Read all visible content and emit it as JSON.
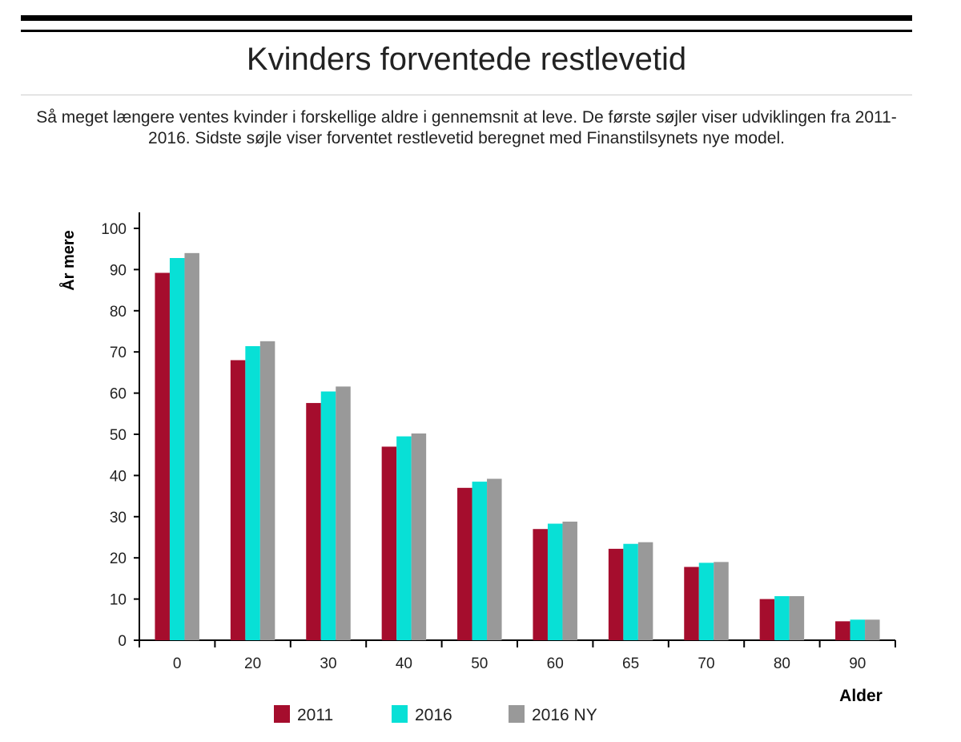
{
  "header": {
    "title": "Kvinders forventede restlevetid",
    "subtitle": "Så meget længere ventes kvinder i forskellige aldre i gennemsnit at leve. De første søjler viser udviklingen fra 2011-2016. Sidste søjle viser forventet restlevetid beregnet med Finanstilsynets nye model."
  },
  "chart_data": {
    "type": "bar",
    "title": "Kvinders forventede restlevetid",
    "xlabel": "Alder",
    "ylabel": "År mere",
    "ylim": [
      0,
      100
    ],
    "yticks": [
      0,
      10,
      20,
      30,
      40,
      50,
      60,
      70,
      80,
      90,
      100
    ],
    "categories": [
      "0",
      "20",
      "30",
      "40",
      "50",
      "60",
      "65",
      "70",
      "80",
      "90"
    ],
    "series": [
      {
        "name": "2011",
        "color": "#a50d2d",
        "values": [
          89.2,
          68.0,
          57.6,
          47.0,
          37.0,
          27.0,
          22.2,
          17.8,
          10.0,
          4.6
        ]
      },
      {
        "name": "2016",
        "color": "#08e0d6",
        "values": [
          92.8,
          71.4,
          60.4,
          49.5,
          38.5,
          28.3,
          23.4,
          18.8,
          10.7,
          5.0
        ]
      },
      {
        "name": "2016 NY",
        "color": "#999999",
        "values": [
          94.0,
          72.6,
          61.6,
          50.2,
          39.2,
          28.8,
          23.8,
          19.0,
          10.7,
          5.0
        ]
      }
    ],
    "grid": false,
    "legend": "bottom"
  }
}
